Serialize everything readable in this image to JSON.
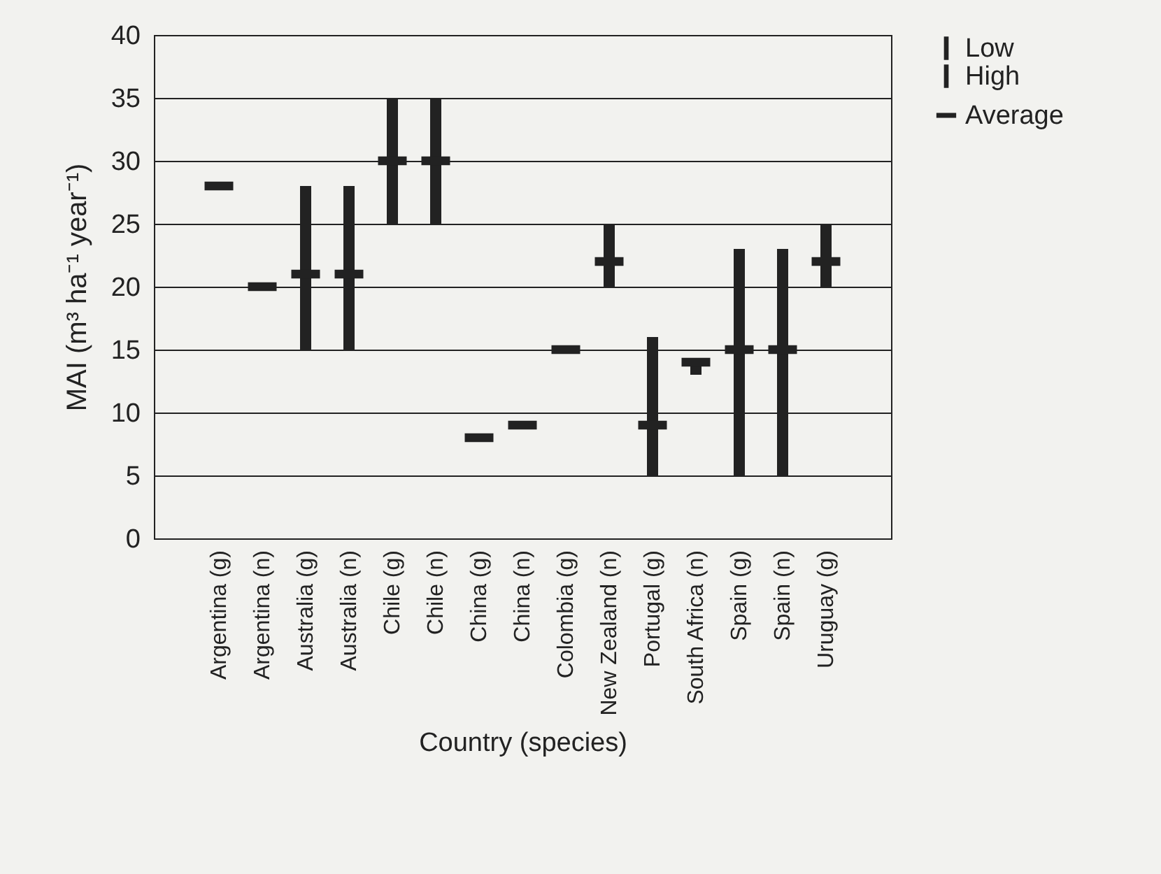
{
  "chart_data": {
    "type": "scatter",
    "xlabel": "Country (species)",
    "ylabel": "MAI (m³ ha⁻¹ year⁻¹)",
    "categories": [
      "Argentina (g)",
      "Argentina (n)",
      "Australia (g)",
      "Australia (n)",
      "Chile (g)",
      "Chile (n)",
      "China (g)",
      "China (n)",
      "Colombia (g)",
      "New Zealand (n)",
      "Portugal (g)",
      "South Africa (n)",
      "Spain (g)",
      "Spain (n)",
      "Uruguay (g)"
    ],
    "series": [
      {
        "name": "Average",
        "color": "#222222",
        "values": [
          28,
          20,
          21,
          21,
          30,
          30,
          8,
          9,
          15,
          22,
          9,
          14,
          15,
          15,
          22
        ],
        "errors": [
          null,
          null,
          [
            15,
            28
          ],
          [
            15,
            28
          ],
          [
            25,
            35
          ],
          [
            25,
            35
          ],
          null,
          null,
          null,
          [
            20,
            25
          ],
          [
            5,
            16
          ],
          [
            13,
            14
          ],
          [
            5,
            23
          ],
          [
            5,
            23
          ],
          [
            20,
            25
          ]
        ]
      }
    ],
    "annotations": [
      "Low",
      "High"
    ],
    "ylim": [
      0,
      40
    ],
    "yticks": [
      0,
      5,
      10,
      15,
      20,
      25,
      30,
      35,
      40
    ],
    "grid": "y",
    "legend": "right"
  }
}
